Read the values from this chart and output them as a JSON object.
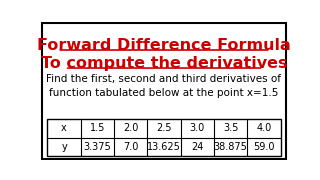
{
  "title_line1": "Forward Difference Formula",
  "title_line2": "To compute the derivatives",
  "subtitle": "Find the first, second and third derivatives of\nfunction tabulated below at the point x=1.5",
  "table_headers": [
    "x",
    "1.5",
    "2.0",
    "2.5",
    "3.0",
    "3.5",
    "4.0"
  ],
  "table_row_y": [
    "y",
    "3.375",
    "7.0",
    "13.625",
    "24",
    "38.875",
    "59.0"
  ],
  "title_color": "#cc0000",
  "text_color": "#000000",
  "bg_color": "#ffffff",
  "border_color": "#000000",
  "title_fontsize": 11.5,
  "subtitle_fontsize": 7.5,
  "table_fontsize": 7.0
}
